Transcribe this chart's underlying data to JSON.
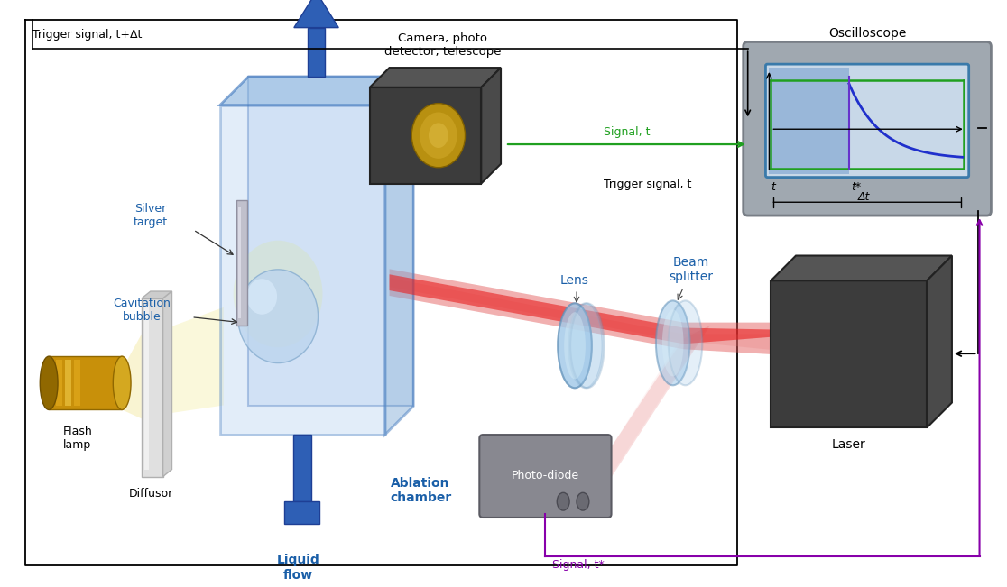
{
  "labels": {
    "trigger_signal_top": "Trigger signal, t+Δt",
    "camera": "Camera, photo\ndetector, telescope",
    "oscilloscope": "Oscilloscope",
    "silver_target": "Silver\ntarget",
    "cavitation_bubble": "Cavitation\nbubble",
    "flash_lamp": "Flash\nlamp",
    "diffusor": "Diffusor",
    "ablation_chamber": "Ablation\nchamber",
    "liquid_flow": "Liquid\nflow",
    "lens": "Lens",
    "beam_splitter": "Beam\nsplitter",
    "laser": "Laser",
    "photo_diode": "Photo-diode",
    "signal_t": "Signal, t",
    "signal_tstar": "Signal, t*",
    "trigger_signal_t": "Trigger signal, t",
    "t_label": "t",
    "tstar_label": "t*",
    "delta_t_label": "Δt"
  },
  "colors": {
    "bg_color": "#ffffff",
    "blue_chamber": "#4a7fc1",
    "blue_chamber_light": "#a8c4e8",
    "blue_chamber_fill": "#c8daf0",
    "arrow_blue": "#2255aa",
    "laser_beam": "#e05050",
    "laser_beam_light": "#f0a0a0",
    "gold": "#c8900a",
    "gold_highlight": "#f5d050",
    "dark_box": "#3c3c3c",
    "dark_box_top": "#555555",
    "dark_box_right": "#4a4a4a",
    "lens_color": "#a0c8e8",
    "lens_outline": "#6090b8",
    "green_signal": "#20a020",
    "blue_signal": "#2030cc",
    "osc_frame": "#a0a8b0",
    "osc_screen": "#c8d8e8",
    "osc_blue_fill": "#6090c8",
    "purple_arrow": "#8800aa",
    "text_blue": "#1a5fa8",
    "text_black": "#000000",
    "diffusor_color": "#e8e8e8",
    "photo_diode_color": "#909090",
    "silver_target_color": "#c8c8d0",
    "dark_edge": "#222222"
  }
}
